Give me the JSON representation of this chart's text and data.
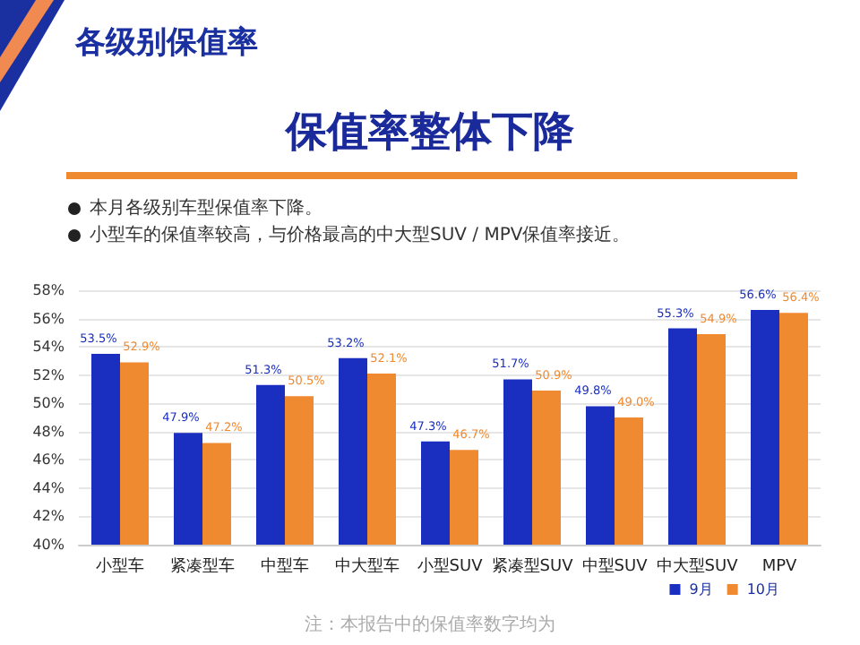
{
  "chart_data": {
    "type": "bar",
    "title": "各级别保值率",
    "subtitle": "保值率整体下降",
    "annotations": [
      "本月各级别车型保值率下降。",
      "小型车的保值率较高，与价格最高的中大型SUV / MPV保值率接近。",
      "注：本报告中的保值率数字均为"
    ],
    "categories": [
      "小型车",
      "紧凑型车",
      "中型车",
      "中大型车",
      "小型SUV",
      "紧凑型SUV",
      "中型SUV",
      "中大型SUV",
      "MPV"
    ],
    "series": [
      {
        "name": "9月",
        "color": "#1a2fc0",
        "values": [
          53.5,
          47.9,
          51.3,
          53.2,
          47.3,
          51.7,
          49.8,
          55.3,
          56.6
        ],
        "value_labels": [
          "53.5%",
          "47.9%",
          "51.3%",
          "53.2%",
          "47.3%",
          "51.7%",
          "49.8%",
          "55.3%",
          "56.6%"
        ]
      },
      {
        "name": "10月",
        "color": "#f08a30",
        "values": [
          52.9,
          47.2,
          50.5,
          52.1,
          46.7,
          50.9,
          49.0,
          54.9,
          56.4
        ],
        "value_labels": [
          "52.9%",
          "47.2%",
          "50.5%",
          "52.1%",
          "46.7%",
          "50.9%",
          "49.0%",
          "54.9%",
          "56.4%"
        ]
      }
    ],
    "ylim": [
      40,
      58
    ],
    "yticks": [
      {
        "value": 40,
        "label": "40%"
      },
      {
        "value": 42,
        "label": "42%"
      },
      {
        "value": 44,
        "label": "44%"
      },
      {
        "value": 46,
        "label": "46%"
      },
      {
        "value": 48,
        "label": "48%"
      },
      {
        "value": 50,
        "label": "50%"
      },
      {
        "value": 52,
        "label": "52%"
      },
      {
        "value": 54,
        "label": "54%"
      },
      {
        "value": 56,
        "label": "56%"
      },
      {
        "value": 58,
        "label": "58%"
      }
    ],
    "grid": "y",
    "legend": "bottom right"
  }
}
